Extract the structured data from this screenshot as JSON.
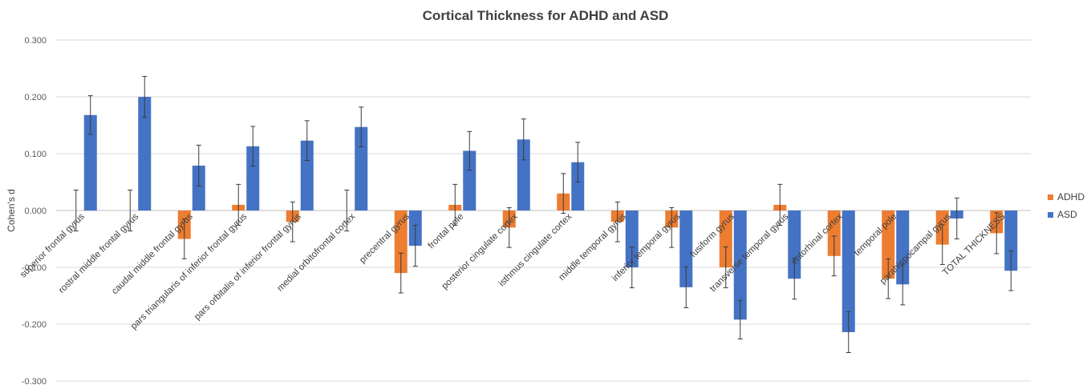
{
  "chart_data": {
    "type": "bar",
    "title": "Cortical Thickness for ADHD and ASD",
    "xlabel": "",
    "ylabel": "Cohen's d",
    "ylim": [
      -0.3,
      0.3
    ],
    "yticks": [
      0.3,
      0.2,
      0.1,
      0.0,
      -0.1,
      -0.2,
      -0.3
    ],
    "ytick_labels": [
      "0.300",
      "0.200",
      "0.100",
      "0.000",
      "-0.100",
      "-0.200",
      "-0.300"
    ],
    "grid": true,
    "legend_position": "right",
    "categories": [
      "superior frontal gyrus",
      "rostral middle frontal gyrus",
      "caudal middle frontal gyrus",
      "pars triangularis of inferior frontal gyrus",
      "pars orbitalis of inferior frontal gyrus",
      "medial orbitofrontal cortex",
      "precentral gyrus",
      "frontal pole",
      "posterior cingulate cortex",
      "isthmus cingulate cortex",
      "middle temporal gyrus",
      "inferior temporal gyrus",
      "fusiform gyrus",
      "transverse temporal gyrus",
      "entorhinal cortex",
      "temporal pole",
      "parahippocampal gyrus",
      "TOTAL THICKNESS"
    ],
    "series": [
      {
        "name": "ADHD",
        "color": "#ED7D31",
        "values": [
          0.0,
          0.0,
          -0.05,
          0.01,
          -0.02,
          0.0,
          -0.11,
          0.01,
          -0.03,
          0.03,
          -0.02,
          -0.03,
          -0.1,
          0.01,
          -0.08,
          -0.12,
          -0.06,
          -0.04
        ],
        "errors": [
          0.036,
          0.036,
          0.035,
          0.036,
          0.035,
          0.036,
          0.035,
          0.036,
          0.035,
          0.035,
          0.035,
          0.035,
          0.036,
          0.036,
          0.035,
          0.035,
          0.035,
          0.036
        ]
      },
      {
        "name": "ASD",
        "color": "#4472C4",
        "values": [
          0.168,
          0.2,
          0.079,
          0.113,
          0.123,
          0.147,
          -0.062,
          0.105,
          0.125,
          0.085,
          -0.1,
          -0.135,
          -0.192,
          -0.12,
          -0.214,
          -0.13,
          -0.014,
          -0.106
        ],
        "errors": [
          0.034,
          0.036,
          0.036,
          0.035,
          0.035,
          0.035,
          0.036,
          0.034,
          0.036,
          0.035,
          0.036,
          0.036,
          0.034,
          0.036,
          0.036,
          0.036,
          0.036,
          0.035
        ]
      }
    ]
  }
}
